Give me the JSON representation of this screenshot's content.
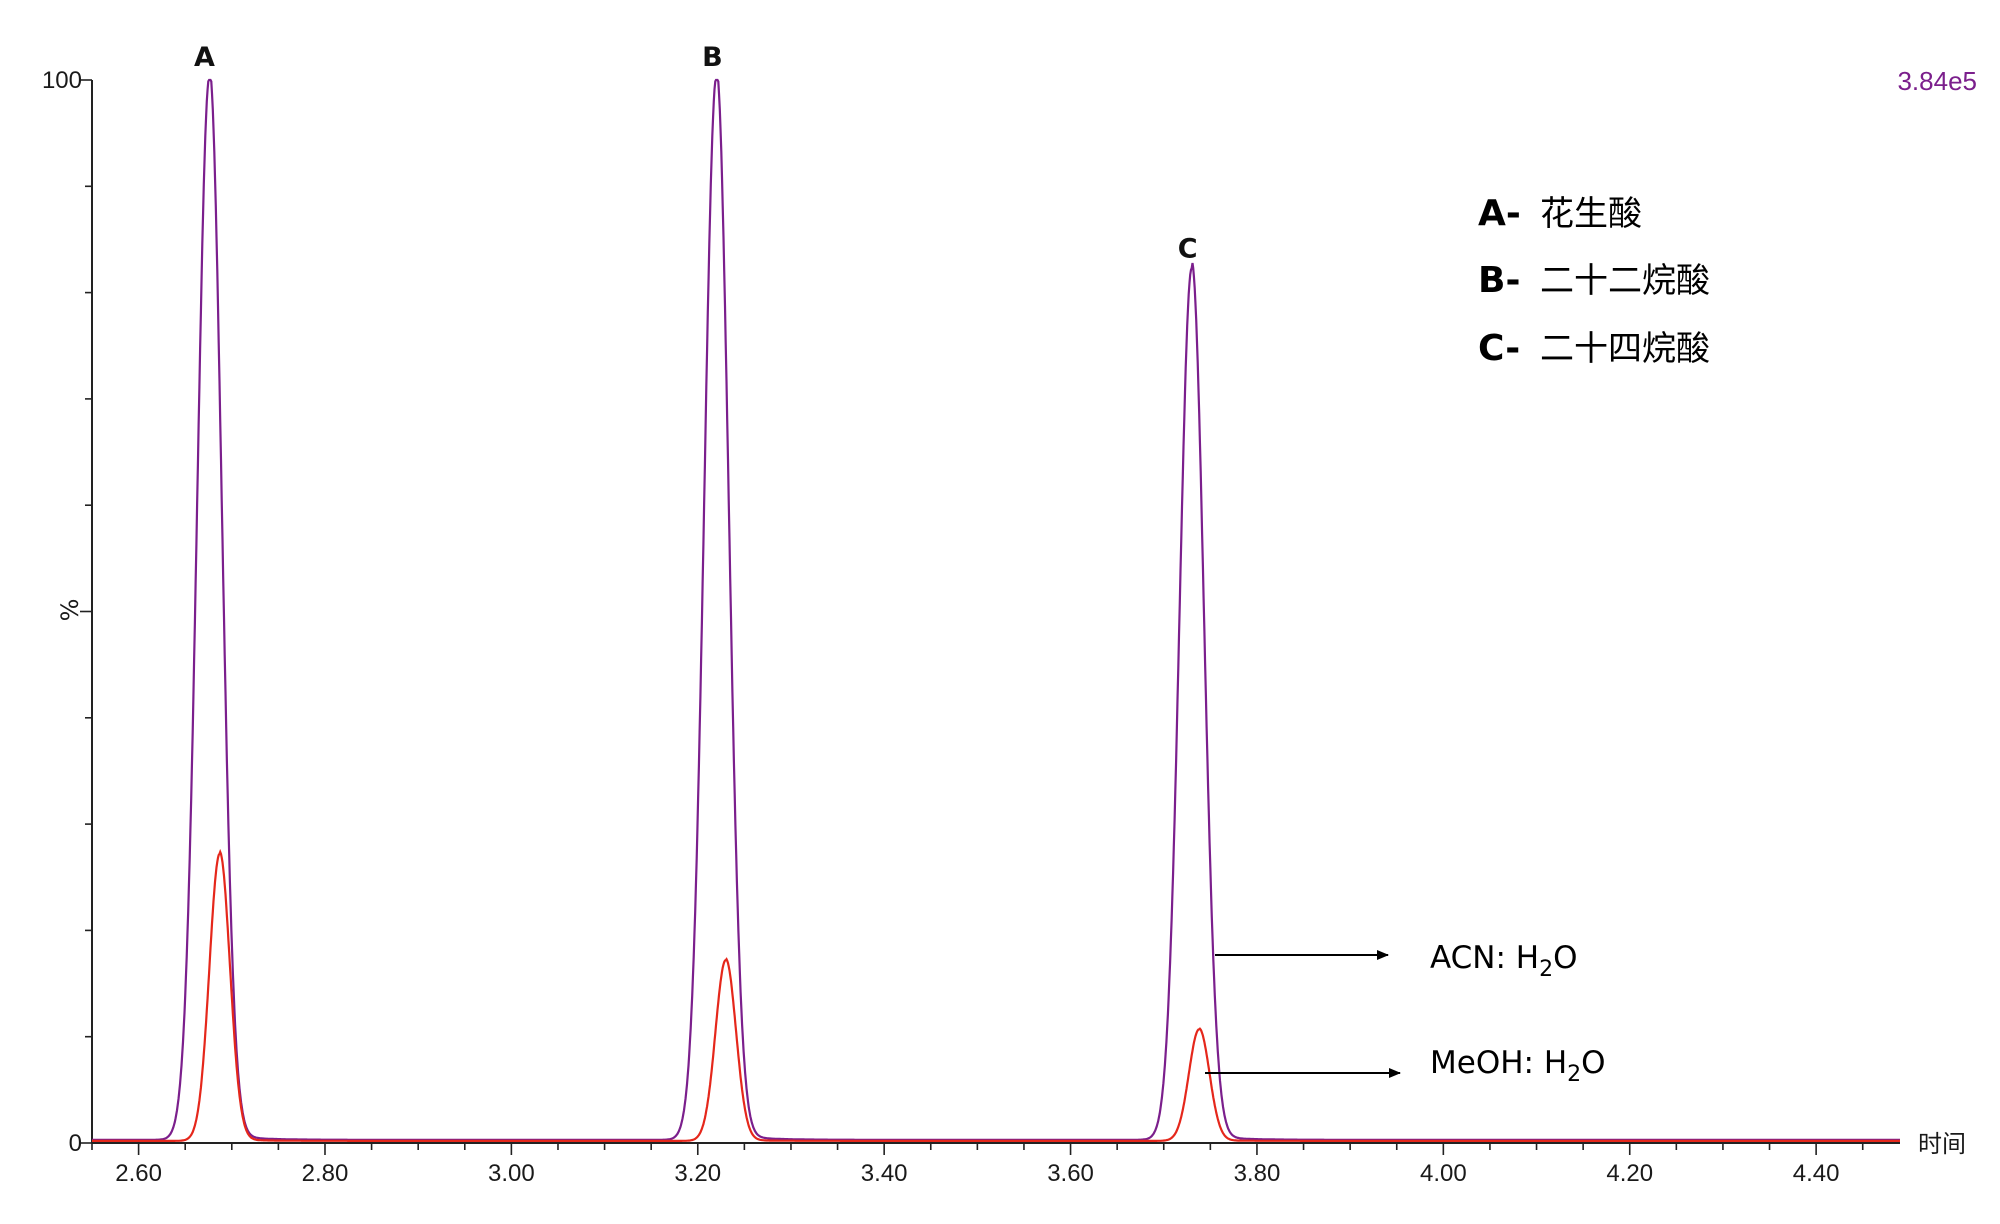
{
  "chart_data": {
    "type": "line",
    "title": "",
    "xlabel": "时间",
    "ylabel": "%",
    "xlim": [
      2.55,
      4.49
    ],
    "ylim": [
      0,
      100
    ],
    "x_ticks": [
      2.6,
      2.8,
      3.0,
      3.2,
      3.4,
      3.6,
      3.8,
      4.0,
      4.2,
      4.4
    ],
    "x_tick_labels": [
      "2.60",
      "2.80",
      "3.00",
      "3.20",
      "3.40",
      "3.60",
      "3.80",
      "4.00",
      "4.20",
      "4.40"
    ],
    "y_tick_labels": [
      "100",
      "0"
    ],
    "scale_label": "3.84e5",
    "grid": false,
    "peak_labels": [
      {
        "label": "A",
        "x": 2.675,
        "y": 100
      },
      {
        "label": "B",
        "x": 3.22,
        "y": 100
      },
      {
        "label": "C",
        "x": 3.73,
        "y": 82
      }
    ],
    "legend": {
      "position": "top-right",
      "entries": [
        {
          "key": "A-",
          "name": "花生酸"
        },
        {
          "key": "B-",
          "name": "二十二烷酸"
        },
        {
          "key": "C-",
          "name": "二十四烷酸"
        }
      ]
    },
    "series": [
      {
        "color": "#7b1f8c",
        "annotation": {
          "main": "ACN: H",
          "sub": "2",
          "tail": "O"
        },
        "baseline": 0.3,
        "peaks": [
          {
            "x": 2.676,
            "height": 100,
            "width": 0.013
          },
          {
            "x": 3.22,
            "height": 100,
            "width": 0.013
          },
          {
            "x": 3.73,
            "height": 82,
            "width": 0.013
          }
        ]
      },
      {
        "color": "#e5271b",
        "annotation": {
          "main": "MeOH: H",
          "sub": "2",
          "tail": "O"
        },
        "baseline": 0.2,
        "peaks": [
          {
            "x": 2.687,
            "height": 27,
            "width": 0.011
          },
          {
            "x": 3.23,
            "height": 17,
            "width": 0.011
          },
          {
            "x": 3.738,
            "height": 10.5,
            "width": 0.011
          }
        ]
      }
    ]
  }
}
